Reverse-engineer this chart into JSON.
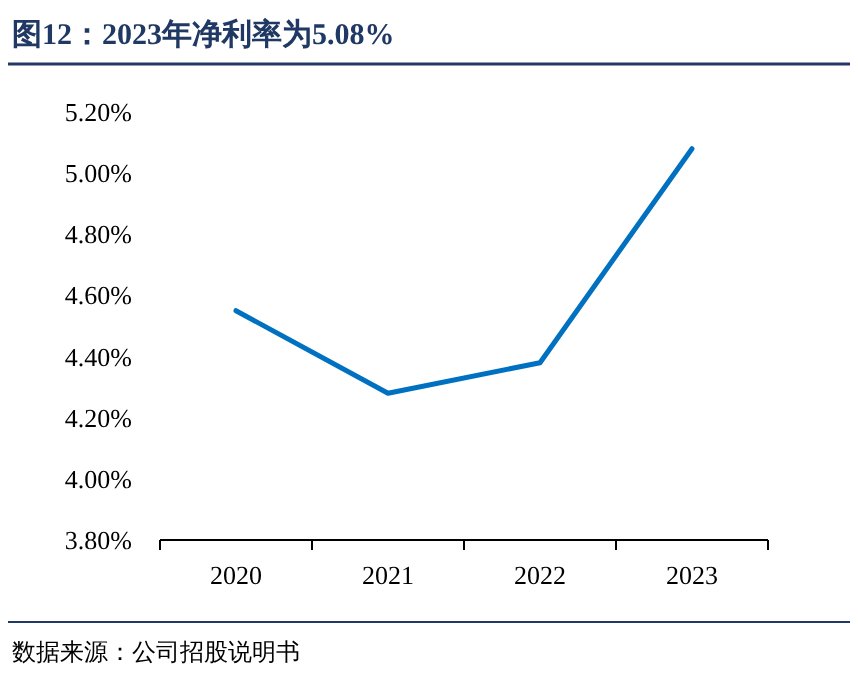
{
  "chart_data": {
    "type": "line",
    "title": "图12：2023年净利率为5.08%",
    "categories": [
      "2020",
      "2021",
      "2022",
      "2023"
    ],
    "series": [
      {
        "color": "#0070c0",
        "values": [
          4.55,
          4.28,
          4.38,
          5.08
        ]
      }
    ],
    "ylim": [
      3.8,
      5.2
    ],
    "yticks": [
      {
        "value": 3.8,
        "label": "3.80%"
      },
      {
        "value": 4.0,
        "label": "4.00%"
      },
      {
        "value": 4.2,
        "label": "4.20%"
      },
      {
        "value": 4.4,
        "label": "4.40%"
      },
      {
        "value": 4.6,
        "label": "4.60%"
      },
      {
        "value": 4.8,
        "label": "4.80%"
      },
      {
        "value": 5.0,
        "label": "5.00%"
      },
      {
        "value": 5.2,
        "label": "5.20%"
      }
    ],
    "grid": false,
    "marker": "none",
    "line_style": "solid",
    "annotations": [
      "数据来源：公司招股说明书"
    ]
  }
}
